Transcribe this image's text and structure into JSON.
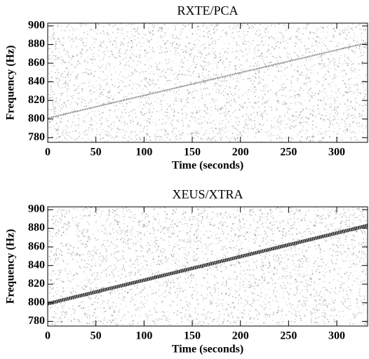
{
  "chart_data": [
    {
      "type": "line",
      "title": "RXTE/PCA",
      "x_label": "Time (seconds)",
      "y_label": "Frequency (Hz)",
      "x": [
        0,
        332
      ],
      "series": [
        {
          "color": "#444444",
          "values": [
            801,
            882
          ]
        }
      ],
      "xlim": [
        0,
        332
      ],
      "ylim": [
        775,
        903
      ],
      "xticks": [
        0,
        50,
        100,
        150,
        200,
        250,
        300
      ],
      "yticks": [
        780,
        800,
        820,
        840,
        860,
        880,
        900
      ]
    },
    {
      "type": "line",
      "title": "XEUS/XTRA",
      "x_label": "Time (seconds)",
      "y_label": "Frequency (Hz)",
      "x": [
        0,
        332
      ],
      "series": [
        {
          "color": "#111111",
          "values": [
            799,
            883
          ]
        }
      ],
      "xlim": [
        0,
        332
      ],
      "ylim": [
        775,
        903
      ],
      "xticks": [
        0,
        50,
        100,
        150,
        200,
        250,
        300
      ],
      "yticks": [
        780,
        800,
        820,
        840,
        860,
        880,
        900
      ]
    }
  ]
}
